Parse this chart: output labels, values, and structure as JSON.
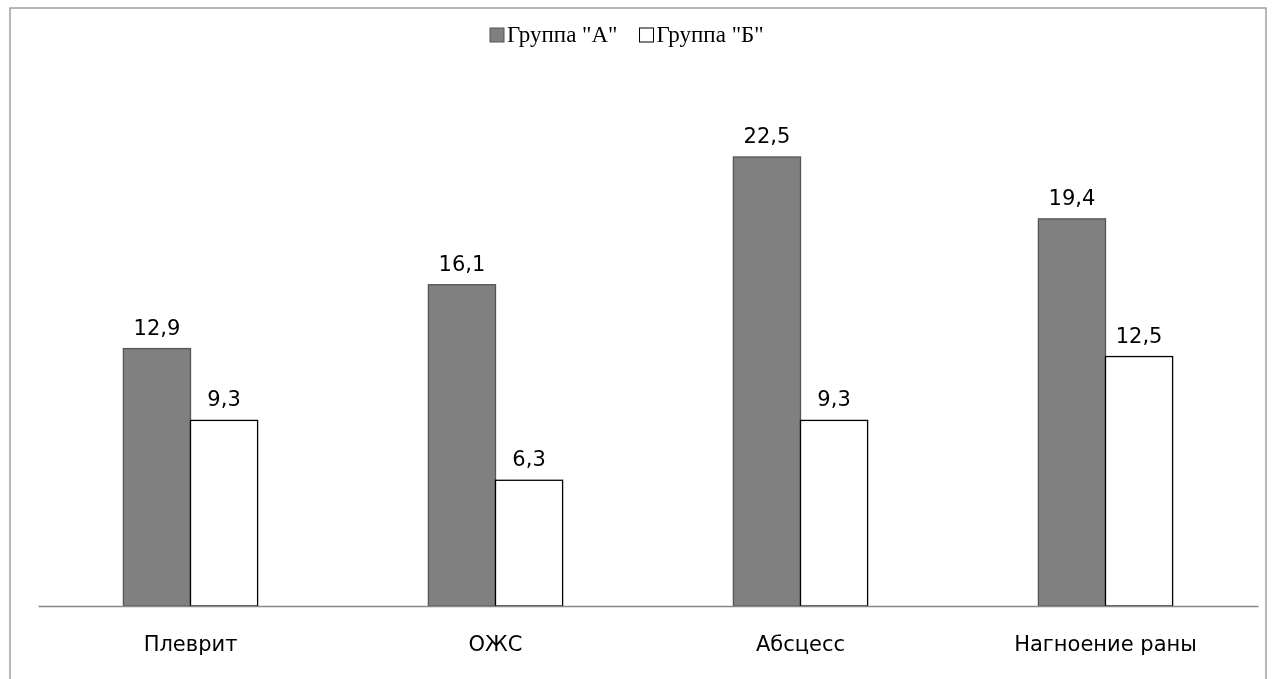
{
  "chart_data": {
    "type": "bar",
    "categories": [
      "Плеврит",
      "ОЖС",
      "Абсцесс",
      "Нагноение раны"
    ],
    "series": [
      {
        "name": "Группа \"А\"",
        "color": "#808080",
        "values": [
          12.9,
          16.1,
          22.5,
          19.4
        ],
        "value_labels": [
          "12,9",
          "16,1",
          "22,5",
          "19,4"
        ]
      },
      {
        "name": "Группа \"Б\"",
        "color": "#ffffff",
        "values": [
          9.3,
          6.3,
          9.3,
          12.5
        ],
        "value_labels": [
          "9,3",
          "6,3",
          "9,3",
          "12,5"
        ]
      }
    ],
    "legend": "top",
    "tick_labels": "x"
  }
}
